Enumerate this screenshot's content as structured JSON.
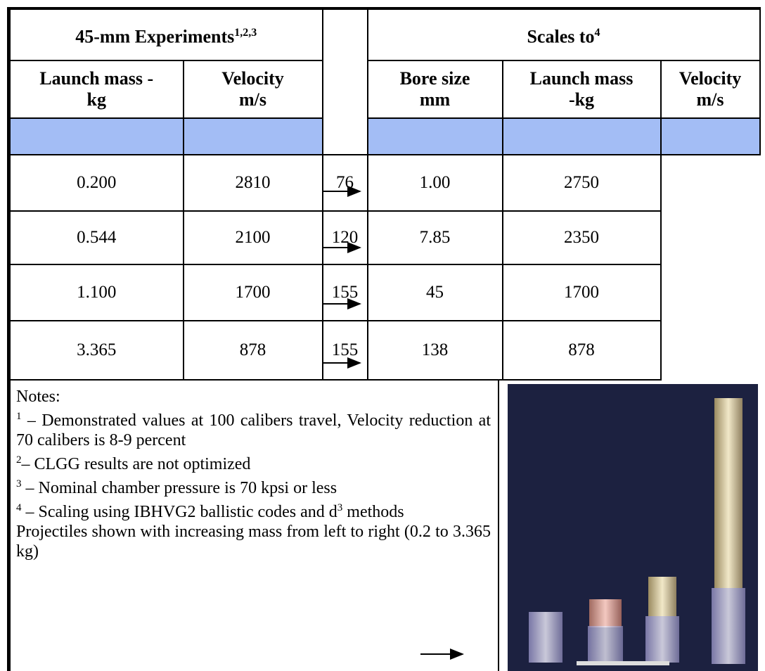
{
  "table": {
    "group_headers": [
      {
        "text": "45-mm Experiments",
        "sup": "1,2,3"
      },
      {
        "text": "Scales to",
        "sup": "4"
      }
    ],
    "columns": [
      [
        "Launch mass -",
        "kg"
      ],
      [
        "Velocity",
        "m/s"
      ],
      [
        "Bore size",
        "mm"
      ],
      [
        "Launch mass",
        "-kg"
      ],
      [
        "Velocity",
        "m/s"
      ]
    ],
    "rows": [
      [
        "0.200",
        "2810",
        "76",
        "1.00",
        "2750"
      ],
      [
        "0.544",
        "2100",
        "120",
        "7.85",
        "2350"
      ],
      [
        "1.100",
        "1700",
        "155",
        "45",
        "1700"
      ],
      [
        "3.365",
        "878",
        "155",
        "138",
        "878"
      ]
    ]
  },
  "notes": {
    "title": "Notes:",
    "items": [
      {
        "marker": "1",
        "text": " – Demonstrated values at 100 calibers travel, Velocity reduction at 70 calibers is 8-9 percent"
      },
      {
        "marker": "2",
        "text": "– CLGG results are not optimized"
      },
      {
        "marker": "3",
        "text": " – Nominal chamber pressure is 70 kpsi or less"
      },
      {
        "marker": "4",
        "text": " – Scaling using IBHVG2 ballistic codes and d",
        "sup": "3",
        "tail": " methods"
      }
    ],
    "caption": "Projectiles shown with increasing mass from left to right (0.2 to 3.365 kg)"
  }
}
